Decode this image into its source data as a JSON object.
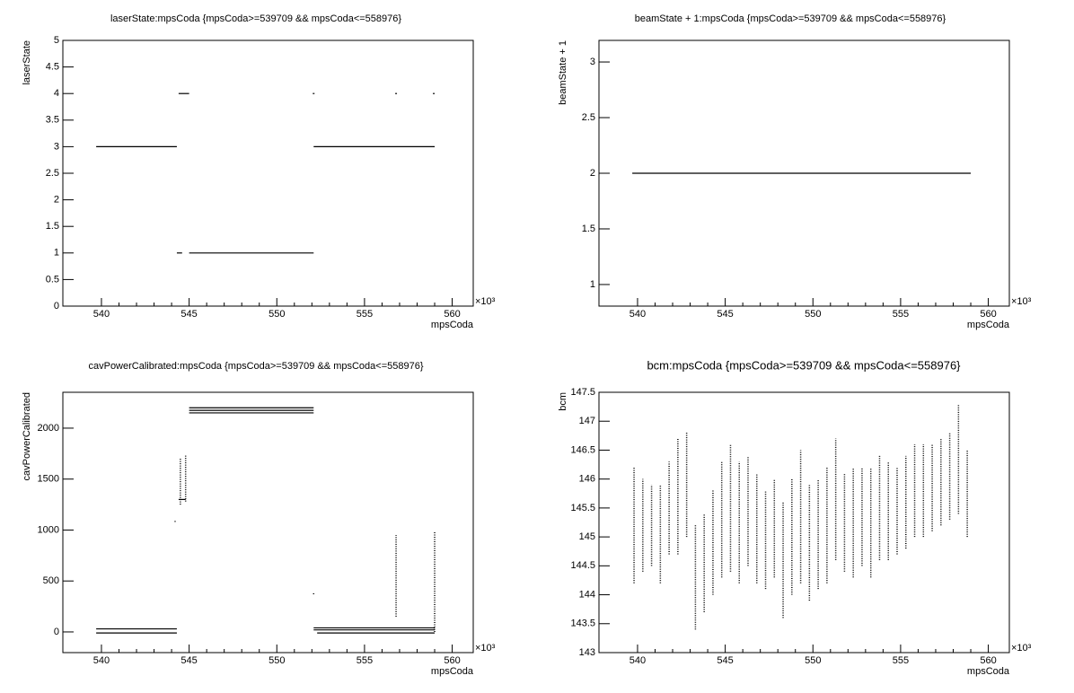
{
  "chart_data": [
    {
      "type": "scatter",
      "title": "laserState:mpsCoda {mpsCoda>=539709 && mpsCoda<=558976}",
      "x_label": "mpsCoda",
      "y_label": "laserState",
      "x_multiplier": "×10³",
      "color": "#000000",
      "xlim": [
        537.8,
        561.2
      ],
      "xticks": [
        540,
        545,
        550,
        555,
        560
      ],
      "ylim": [
        0,
        5
      ],
      "yticks": [
        0,
        0.5,
        1,
        1.5,
        2,
        2.5,
        3,
        3.5,
        4,
        4.5,
        5
      ],
      "segments": [
        {
          "x": [
            539.7,
            544.3
          ],
          "y": 3
        },
        {
          "x": [
            544.4,
            545.0
          ],
          "y": 4
        },
        {
          "x": [
            544.3,
            544.6
          ],
          "y": 1
        },
        {
          "x": [
            545.0,
            552.1
          ],
          "y": 1
        },
        {
          "x": [
            552.1,
            559.0
          ],
          "y": 3
        },
        {
          "x": [
            552.05,
            552.15
          ],
          "y": 4
        },
        {
          "x": [
            556.75,
            556.85
          ],
          "y": 4
        },
        {
          "x": [
            558.9,
            559.0
          ],
          "y": 4
        }
      ],
      "bands": []
    },
    {
      "type": "scatter",
      "title": "beamState + 1:mpsCoda {mpsCoda>=539709 && mpsCoda<=558976}",
      "x_label": "mpsCoda",
      "y_label": "beamState + 1",
      "x_multiplier": "×10³",
      "color": "#000000",
      "xlim": [
        537.8,
        561.2
      ],
      "xticks": [
        540,
        545,
        550,
        555,
        560
      ],
      "ylim": [
        0.806,
        3.194
      ],
      "yticks": [
        1,
        1.5,
        2,
        2.5,
        3
      ],
      "segments": [
        {
          "x": [
            539.7,
            559.0
          ],
          "y": 2
        }
      ],
      "bands": []
    },
    {
      "type": "scatter",
      "title": "cavPowerCalibrated:mpsCoda {mpsCoda>=539709 && mpsCoda<=558976}",
      "x_label": "mpsCoda",
      "y_label": "cavPowerCalibrated",
      "x_multiplier": "×10³",
      "color": "#000000",
      "xlim": [
        537.8,
        561.2
      ],
      "xticks": [
        540,
        545,
        550,
        555,
        560
      ],
      "ylim": [
        -203,
        2352
      ],
      "yticks": [
        0,
        500,
        1000,
        1500,
        2000
      ],
      "segments": [
        {
          "x": [
            539.7,
            544.3
          ],
          "y": 30
        },
        {
          "x": [
            539.7,
            544.3
          ],
          "y": -10
        },
        {
          "x": [
            545.0,
            552.1
          ],
          "y": 2150
        },
        {
          "x": [
            545.0,
            552.1
          ],
          "y": 2175
        },
        {
          "x": [
            545.0,
            552.1
          ],
          "y": 2200
        },
        {
          "x": [
            544.4,
            544.8
          ],
          "y": 1300
        },
        {
          "x": [
            552.1,
            559.0
          ],
          "y": 40
        },
        {
          "x": [
            552.1,
            559.0
          ],
          "y": 20
        },
        {
          "x": [
            552.3,
            559.0
          ],
          "y": -10
        }
      ],
      "bands": [
        {
          "x": 544.2,
          "low": 1080,
          "high": 1100
        },
        {
          "x": 544.5,
          "low": 1250,
          "high": 1700
        },
        {
          "x": 544.8,
          "low": 1280,
          "high": 1740
        },
        {
          "x": 552.1,
          "low": 370,
          "high": 390
        },
        {
          "x": 556.8,
          "low": 150,
          "high": 950
        },
        {
          "x": 559.0,
          "low": 0,
          "high": 980
        }
      ]
    },
    {
      "type": "scatter",
      "title": "bcm:mpsCoda {mpsCoda>=539709 && mpsCoda<=558976}",
      "x_label": "mpsCoda",
      "y_label": "bcm",
      "x_multiplier": "×10³",
      "color": "#000000",
      "xlim": [
        537.8,
        561.2
      ],
      "xticks": [
        540,
        545,
        550,
        555,
        560
      ],
      "ylim": [
        143,
        147.5
      ],
      "yticks": [
        143,
        143.5,
        144,
        144.5,
        145,
        145.5,
        146,
        146.5,
        147,
        147.5
      ],
      "segments": [],
      "bands": [
        {
          "x": 539.8,
          "low": 144.2,
          "high": 146.2
        },
        {
          "x": 540.3,
          "low": 144.4,
          "high": 146.0
        },
        {
          "x": 540.8,
          "low": 144.5,
          "high": 145.9
        },
        {
          "x": 541.3,
          "low": 144.2,
          "high": 145.9
        },
        {
          "x": 541.8,
          "low": 144.7,
          "high": 146.3
        },
        {
          "x": 542.3,
          "low": 144.7,
          "high": 146.7
        },
        {
          "x": 542.8,
          "low": 145.0,
          "high": 146.8
        },
        {
          "x": 543.3,
          "low": 143.4,
          "high": 145.2
        },
        {
          "x": 543.8,
          "low": 143.7,
          "high": 145.4
        },
        {
          "x": 544.3,
          "low": 144.0,
          "high": 145.8
        },
        {
          "x": 544.8,
          "low": 144.3,
          "high": 146.3
        },
        {
          "x": 545.3,
          "low": 144.4,
          "high": 146.6
        },
        {
          "x": 545.8,
          "low": 144.2,
          "high": 146.3
        },
        {
          "x": 546.3,
          "low": 144.5,
          "high": 146.4
        },
        {
          "x": 546.8,
          "low": 144.2,
          "high": 146.1
        },
        {
          "x": 547.3,
          "low": 144.1,
          "high": 145.8
        },
        {
          "x": 547.8,
          "low": 144.3,
          "high": 146.0
        },
        {
          "x": 548.3,
          "low": 143.6,
          "high": 145.6
        },
        {
          "x": 548.8,
          "low": 144.0,
          "high": 146.0
        },
        {
          "x": 549.3,
          "low": 144.2,
          "high": 146.5
        },
        {
          "x": 549.8,
          "low": 143.9,
          "high": 145.9
        },
        {
          "x": 550.3,
          "low": 144.1,
          "high": 146.0
        },
        {
          "x": 550.8,
          "low": 144.2,
          "high": 146.2
        },
        {
          "x": 551.3,
          "low": 144.6,
          "high": 146.7
        },
        {
          "x": 551.8,
          "low": 144.4,
          "high": 146.1
        },
        {
          "x": 552.3,
          "low": 144.3,
          "high": 146.2
        },
        {
          "x": 552.8,
          "low": 144.5,
          "high": 146.2
        },
        {
          "x": 553.3,
          "low": 144.3,
          "high": 146.2
        },
        {
          "x": 553.8,
          "low": 144.6,
          "high": 146.4
        },
        {
          "x": 554.3,
          "low": 144.6,
          "high": 146.3
        },
        {
          "x": 554.8,
          "low": 144.7,
          "high": 146.2
        },
        {
          "x": 555.3,
          "low": 144.8,
          "high": 146.4
        },
        {
          "x": 555.8,
          "low": 145.0,
          "high": 146.6
        },
        {
          "x": 556.3,
          "low": 145.0,
          "high": 146.6
        },
        {
          "x": 556.8,
          "low": 145.1,
          "high": 146.6
        },
        {
          "x": 557.3,
          "low": 145.2,
          "high": 146.7
        },
        {
          "x": 557.8,
          "low": 145.3,
          "high": 146.8
        },
        {
          "x": 558.3,
          "low": 145.4,
          "high": 147.3
        },
        {
          "x": 558.8,
          "low": 145.0,
          "high": 146.5
        }
      ]
    }
  ]
}
